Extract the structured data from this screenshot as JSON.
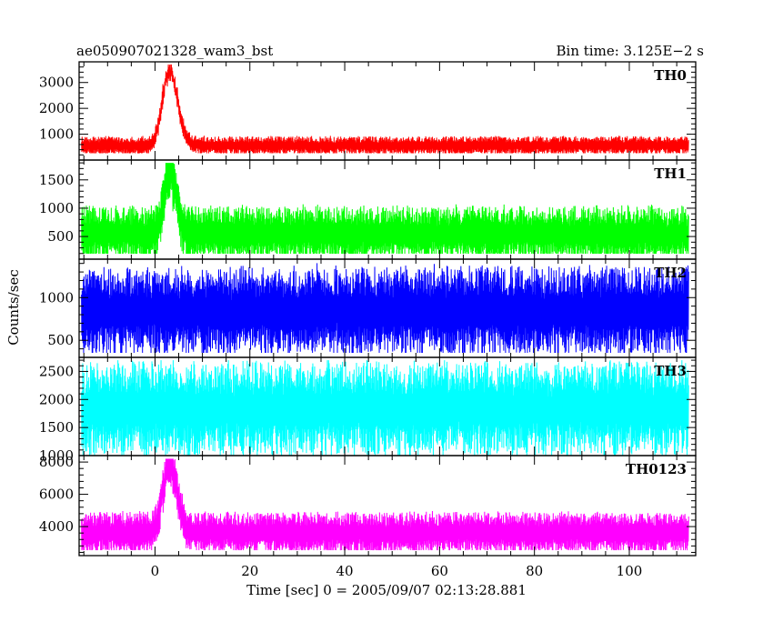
{
  "header": {
    "title": "ae050907021328_wam3_bst",
    "bin_time": "Bin time: 3.125E−2 s"
  },
  "axes": {
    "xlabel": "Time [sec] 0 = 2005/09/07 02:13:28.881",
    "ylabel": "Counts/sec",
    "xlim": [
      -16,
      114
    ],
    "xticks": [
      0,
      20,
      40,
      60,
      80,
      100
    ]
  },
  "chart_data": [
    {
      "type": "line",
      "name": "TH0",
      "color": "#ff0000",
      "ylim": [
        0,
        3800
      ],
      "yticks": [
        1000,
        2000,
        3000
      ],
      "x_range": [
        -15.5,
        112.5
      ],
      "baseline_mean": 560,
      "baseline_low": 280,
      "baseline_high": 1000,
      "peak": {
        "x": 3.0,
        "y": 3700,
        "width": 1.6
      }
    },
    {
      "type": "line",
      "name": "TH1",
      "color": "#00ff00",
      "ylim": [
        100,
        1850
      ],
      "yticks": [
        500,
        1000,
        1500
      ],
      "x_range": [
        -15.5,
        112.5
      ],
      "baseline_mean": 550,
      "baseline_low": 220,
      "baseline_high": 1200,
      "peak": {
        "x": 3.0,
        "y": 1800,
        "width": 1.2
      }
    },
    {
      "type": "line",
      "name": "TH2",
      "color": "#0000ff",
      "ylim": [
        300,
        1450
      ],
      "yticks": [
        500,
        1000
      ],
      "x_range": [
        -15.5,
        112.5
      ],
      "baseline_mean": 840,
      "baseline_low": 380,
      "baseline_high": 1430,
      "peak": null
    },
    {
      "type": "line",
      "name": "TH3",
      "color": "#00ffff",
      "ylim": [
        1000,
        2750
      ],
      "yticks": [
        1000,
        1500,
        2000,
        2500
      ],
      "x_range": [
        -15.5,
        112.5
      ],
      "baseline_mean": 1830,
      "baseline_low": 1020,
      "baseline_high": 2700,
      "peak": null
    },
    {
      "type": "line",
      "name": "TH0123",
      "color": "#ff00ff",
      "ylim": [
        2200,
        8400
      ],
      "yticks": [
        4000,
        6000,
        8000
      ],
      "x_range": [
        -15.5,
        112.5
      ],
      "baseline_mean": 3600,
      "baseline_low": 2600,
      "baseline_high": 5200,
      "peak": {
        "x": 3.0,
        "y": 8200,
        "width": 1.5
      }
    }
  ]
}
